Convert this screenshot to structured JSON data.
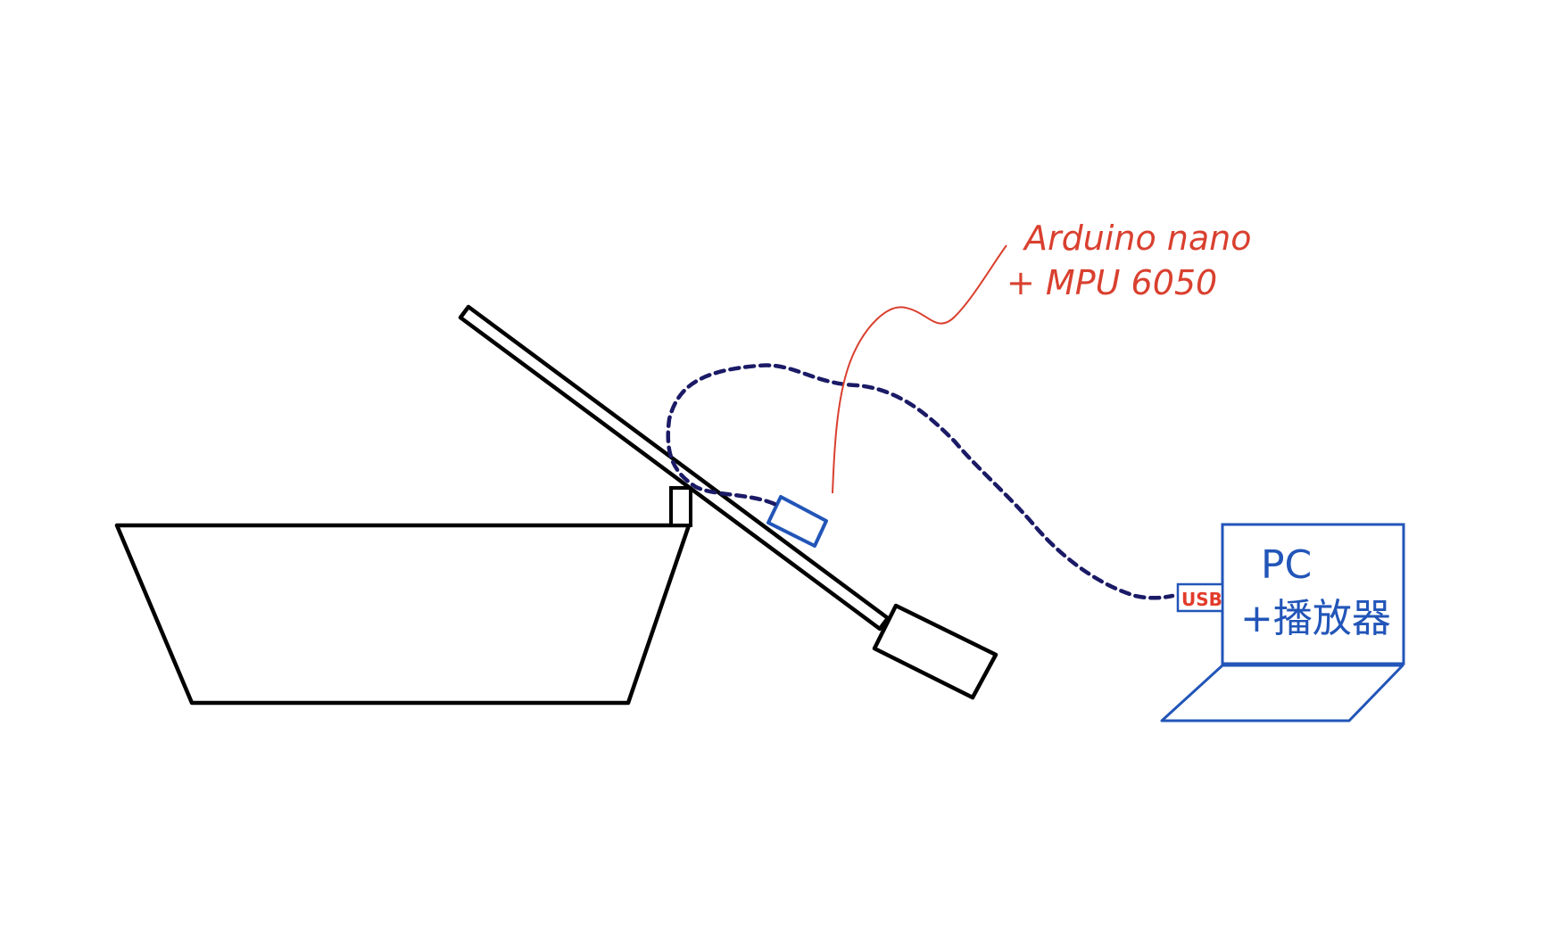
{
  "diagram": {
    "sensor_label_line1": "Arduino nano",
    "sensor_label_line2": "+ MPU 6050",
    "pc_label_line1": "PC",
    "pc_label_line2": "+播放器",
    "usb_label": "USB"
  },
  "colors": {
    "outline": "#000000",
    "sensor": "#2255b8",
    "laptop": "#2255b8",
    "annotation": "#d9402f",
    "cable": "#1a1a66",
    "usb_text": "#e23b2a"
  }
}
